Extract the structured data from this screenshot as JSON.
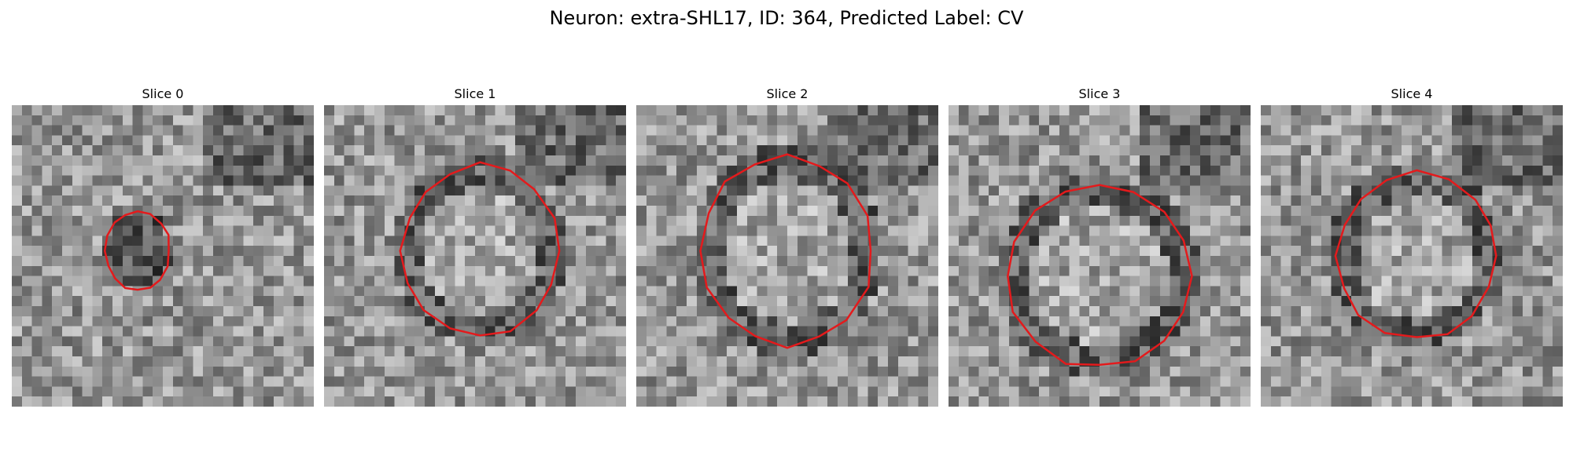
{
  "figure": {
    "title": "Neuron: extra-SHL17, ID: 364, Predicted Label: CV"
  },
  "colors": {
    "contour": "#e41a1c",
    "background": "#ffffff",
    "text": "#000000"
  },
  "slices": [
    {
      "label": "Slice 0"
    },
    {
      "label": "Slice 1"
    },
    {
      "label": "Slice 2"
    },
    {
      "label": "Slice 3"
    },
    {
      "label": "Slice 4"
    }
  ]
}
